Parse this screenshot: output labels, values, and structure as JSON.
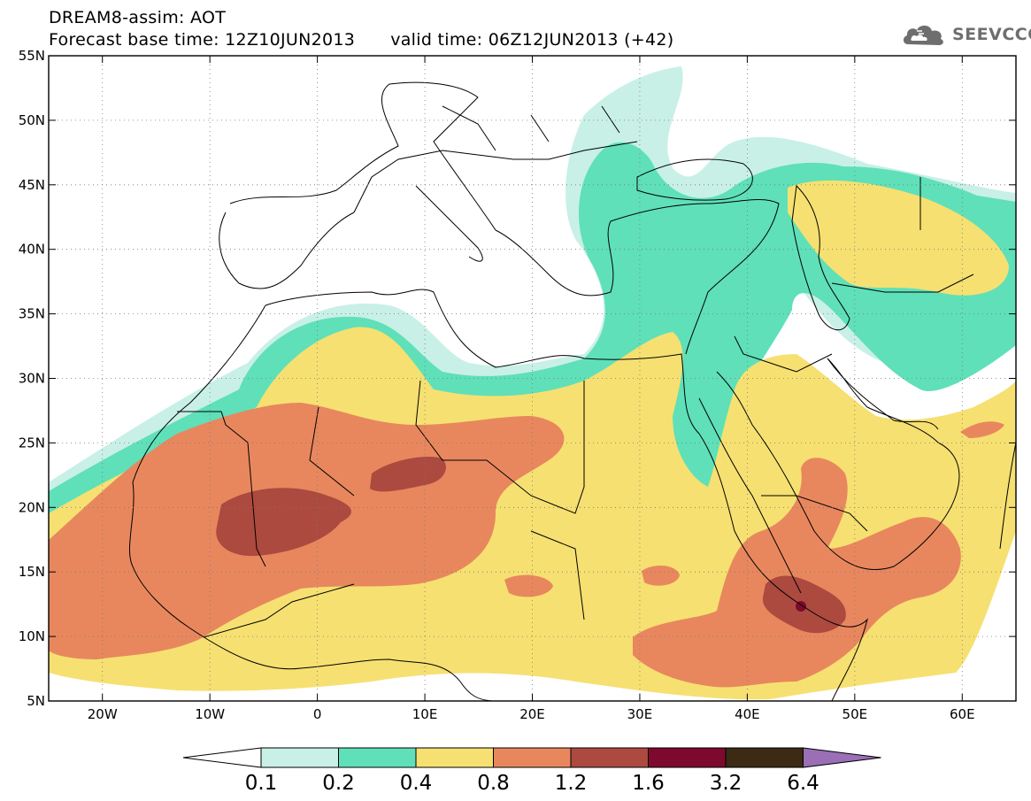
{
  "header": {
    "title": "DREAM8-assim: AOT",
    "base_time": "Forecast base time: 12Z10JUN2013",
    "valid_time": "valid time: 06Z12JUN2013 (+42)"
  },
  "logo": {
    "text": "SEEVCCC",
    "icon": "cloud-logo-icon",
    "color": "#6e6e6e"
  },
  "map": {
    "lon_range": [
      -25,
      65
    ],
    "lat_range": [
      5,
      55
    ],
    "lat_ticks": [
      {
        "value": 55,
        "label": "55N"
      },
      {
        "value": 50,
        "label": "50N"
      },
      {
        "value": 45,
        "label": "45N"
      },
      {
        "value": 40,
        "label": "40N"
      },
      {
        "value": 35,
        "label": "35N"
      },
      {
        "value": 30,
        "label": "30N"
      },
      {
        "value": 25,
        "label": "25N"
      },
      {
        "value": 20,
        "label": "20N"
      },
      {
        "value": 15,
        "label": "15N"
      },
      {
        "value": 10,
        "label": "10N"
      },
      {
        "value": 5,
        "label": "5N"
      }
    ],
    "lon_ticks": [
      {
        "value": -20,
        "label": "20W"
      },
      {
        "value": -10,
        "label": "10W"
      },
      {
        "value": 0,
        "label": "0"
      },
      {
        "value": 10,
        "label": "10E"
      },
      {
        "value": 20,
        "label": "20E"
      },
      {
        "value": 30,
        "label": "30E"
      },
      {
        "value": 40,
        "label": "40E"
      },
      {
        "value": 50,
        "label": "50E"
      },
      {
        "value": 60,
        "label": "60E"
      }
    ],
    "grid": "dotted",
    "coastline_color": "#000000"
  },
  "colorbar": {
    "levels": [
      "0.1",
      "0.2",
      "0.4",
      "0.8",
      "1.2",
      "1.6",
      "3.2",
      "6.4"
    ],
    "colors": [
      "#ffffff",
      "#c8f0e6",
      "#5fe0b8",
      "#f6e071",
      "#e8875e",
      "#ac4a40",
      "#7d0a2e",
      "#3d2a14",
      "#9a6fb5"
    ]
  },
  "fields": {
    "palette": {
      "c1": "#c8f0e6",
      "c2": "#5fe0b8",
      "c3": "#f6e071",
      "c4": "#e8875e",
      "c5": "#ac4a40",
      "c6": "#7d0a2e"
    }
  }
}
